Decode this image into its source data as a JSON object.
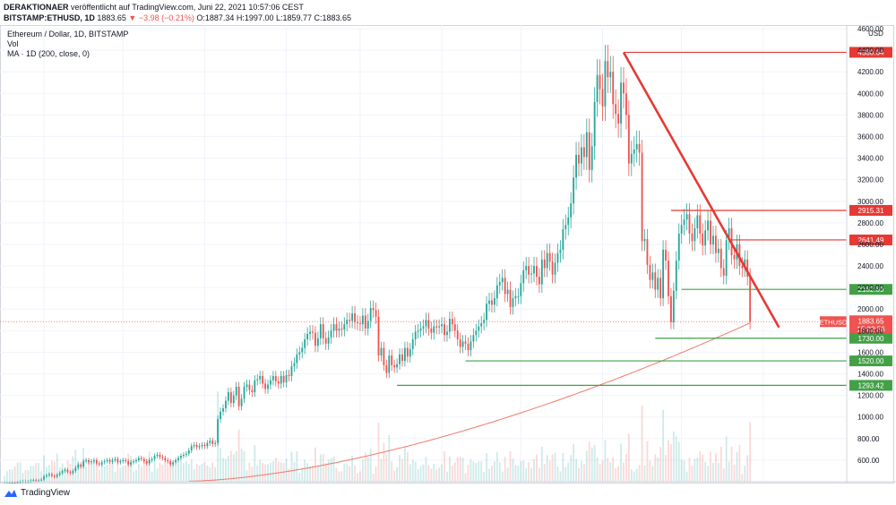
{
  "header": {
    "publisher": "DERAKTIONAER",
    "published_text": "veröffentlicht auf TradingView.com, Juni 22, 2021 10:57:06 CEST",
    "symbol": "BITSTAMP:ETHUSD, 1D",
    "last": "1883.65",
    "change": "▼ −3.98 (−0.21%)",
    "ohlc": "O:1887.34 H:1997.00 L:1859.77 C:1883.65"
  },
  "legend": {
    "title": "Ethereum / Dollar, 1D, BITSTAMP",
    "vol": "Vol",
    "ma": "MA · 1D (200, close, 0)"
  },
  "footer": {
    "brand": "TradingView"
  },
  "colors": {
    "up": "#26a69a",
    "down": "#ef5350",
    "red_line": "#e53935",
    "green_line": "#43a047",
    "ma": "#f0786a",
    "grid": "#f0f3fa"
  },
  "chart_data": {
    "type": "candlestick",
    "title": "Ethereum / Dollar, 1D, BITSTAMP",
    "currency": "USD",
    "ylim": [
      400,
      4600
    ],
    "y_ticks": [
      "600.00",
      "800.00",
      "1000.00",
      "1200.00",
      "1400.00",
      "1600.00",
      "1800.00",
      "2000.00",
      "2200.00",
      "2400.00",
      "2600.00",
      "2800.00",
      "3000.00",
      "3200.00",
      "3400.00",
      "3600.00",
      "3800.00",
      "4000.00",
      "4200.00",
      "4400.00",
      "4600.00"
    ],
    "x_ticks": [
      {
        "label": "Nov",
        "day": 16
      },
      {
        "label": "Dez",
        "day": 46
      },
      {
        "label": "2021",
        "day": 77
      },
      {
        "label": "Feb",
        "day": 108
      },
      {
        "label": "Mrz",
        "day": 136
      },
      {
        "label": "Apr",
        "day": 167
      },
      {
        "label": "Mai",
        "day": 197
      },
      {
        "label": "Jun",
        "day": 228
      },
      {
        "label": "Jul",
        "day": 258
      },
      {
        "label": "Aug",
        "day": 289
      }
    ],
    "x_range_days": [
      0,
      320
    ],
    "closes": [
      380,
      385,
      390,
      392,
      388,
      395,
      400,
      405,
      398,
      402,
      410,
      415,
      408,
      412,
      420,
      450,
      460,
      470,
      455,
      445,
      465,
      480,
      500,
      510,
      490,
      480,
      500,
      530,
      560,
      540,
      590,
      600,
      580,
      590,
      600,
      570,
      560,
      580,
      590,
      600,
      585,
      600,
      610,
      580,
      590,
      600,
      590,
      560,
      580,
      590,
      600,
      620,
      610,
      590,
      570,
      600,
      610,
      640,
      650,
      630,
      620,
      600,
      590,
      560,
      580,
      600,
      620,
      640,
      650,
      660,
      690,
      730,
      740,
      720,
      730,
      740,
      730,
      760,
      780,
      750,
      760,
      980,
      1050,
      1080,
      1150,
      1230,
      1130,
      1200,
      1280,
      1100,
      1170,
      1280,
      1300,
      1250,
      1230,
      1340,
      1350,
      1380,
      1310,
      1260,
      1300,
      1340,
      1380,
      1330,
      1310,
      1380,
      1320,
      1390,
      1380,
      1470,
      1500,
      1580,
      1600,
      1640,
      1720,
      1770,
      1790,
      1780,
      1660,
      1730,
      1860,
      1730,
      1680,
      1740,
      1800,
      1860,
      1800,
      1820,
      1810,
      1860,
      1900,
      1890,
      1960,
      1880,
      1870,
      1860,
      1940,
      1820,
      1890,
      2010,
      1990,
      1930,
      1570,
      1640,
      1480,
      1410,
      1570,
      1480,
      1460,
      1490,
      1580,
      1520,
      1640,
      1560,
      1630,
      1720,
      1790,
      1800,
      1820,
      1840,
      1900,
      1820,
      1780,
      1840,
      1830,
      1840,
      1860,
      1760,
      1790,
      1910,
      1860,
      1800,
      1720,
      1650,
      1700,
      1680,
      1620,
      1700,
      1760,
      1800,
      1840,
      1870,
      1900,
      2050,
      2080,
      2040,
      2100,
      2220,
      2250,
      2290,
      2140,
      2180,
      2020,
      2100,
      2120,
      2120,
      2240,
      2360,
      2400,
      2320,
      2330,
      2400,
      2300,
      2230,
      2460,
      2380,
      2520,
      2440,
      2320,
      2430,
      2520,
      2550,
      2740,
      2780,
      2850,
      2980,
      3220,
      3430,
      3350,
      3500,
      3410,
      3640,
      3290,
      3510,
      3920,
      4170,
      4040,
      3880,
      4300,
      4150,
      4200,
      3900,
      3810,
      3720,
      4100,
      4000,
      3800,
      3350,
      3440,
      3480,
      3530,
      3450,
      2630,
      2650,
      2410,
      2270,
      2340,
      2180,
      2290,
      2100,
      2550,
      2450,
      2120,
      1880,
      2170,
      2450,
      2700,
      2780,
      2830,
      2880,
      2700,
      2630,
      2750,
      2870,
      2700,
      2590,
      2730,
      2820,
      2600,
      2680,
      2520,
      2560,
      2380,
      2310,
      2640,
      2750,
      2500,
      2460,
      2600,
      2400,
      2380,
      2460,
      2300,
      1880
    ],
    "ma200": {
      "name": "MA 200",
      "start_value": 405,
      "end_value": 1883
    },
    "levels": [
      {
        "value": 4380.64,
        "label": "4380.64",
        "color": "red",
        "from_day": 236
      },
      {
        "value": 2915.31,
        "label": "2915.31",
        "color": "red",
        "from_day": 254
      },
      {
        "value": 2641.49,
        "label": "2641.49",
        "color": "red",
        "from_day": 276
      },
      {
        "value": 2182.89,
        "label": "2182.89",
        "color": "green",
        "from_day": 258
      },
      {
        "value": 1730.0,
        "label": "1730.00",
        "color": "green",
        "from_day": 248
      },
      {
        "value": 1520.0,
        "label": "1520.00",
        "color": "green",
        "from_day": 176
      },
      {
        "value": 1293.42,
        "label": "1293.42",
        "color": "green",
        "from_day": 150
      }
    ],
    "trendline": {
      "from": {
        "day": 236,
        "value": 4380
      },
      "to": {
        "day": 295,
        "value": 1830
      }
    },
    "current_price": {
      "label": "ETHUSD",
      "value": "1883.65",
      "countdown": "15:02:56"
    },
    "volume": {
      "label": "Vol"
    }
  }
}
